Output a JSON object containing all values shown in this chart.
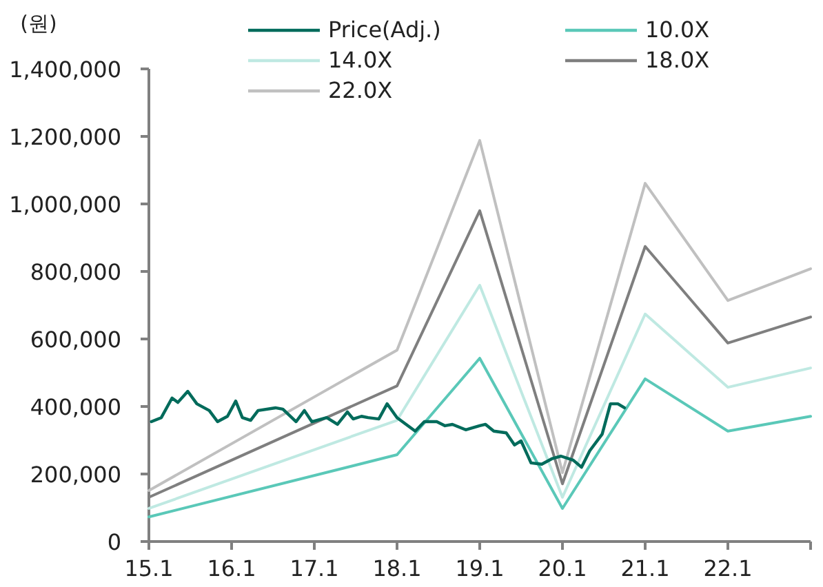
{
  "chart_data": {
    "type": "line",
    "ylabel": "(원)",
    "xlim": [
      15.1,
      23.1
    ],
    "xticks": [
      15.1,
      16.1,
      17.1,
      18.1,
      19.1,
      20.1,
      21.1,
      22.1,
      {
        "value": 23.1,
        "label": null
      }
    ],
    "ylim": [
      0,
      1400000
    ],
    "yticks": [
      {
        "value": 0,
        "label": "0"
      },
      {
        "value": 200000,
        "label": "200,000"
      },
      {
        "value": 400000,
        "label": "400,000"
      },
      {
        "value": 600000,
        "label": "600,000"
      },
      {
        "value": 800000,
        "label": "800,000"
      },
      {
        "value": 1000000,
        "label": "1,000,000"
      },
      {
        "value": 1200000,
        "label": "1,200,000"
      },
      {
        "value": 1400000,
        "label": "1,400,000"
      }
    ],
    "grid": false,
    "legend": "top",
    "marker": "none",
    "line_style": "solid",
    "series": [
      {
        "name": "Price(Adj.)",
        "color": "#006b5b",
        "x": [
          15.13,
          15.25,
          15.38,
          15.45,
          15.57,
          15.68,
          15.83,
          15.93,
          16.05,
          16.15,
          16.23,
          16.33,
          16.42,
          16.63,
          16.72,
          16.88,
          16.98,
          17.07,
          17.25,
          17.38,
          17.5,
          17.57,
          17.67,
          17.75,
          17.88,
          17.98,
          18.1,
          18.32,
          18.43,
          18.58,
          18.68,
          18.77,
          18.93,
          19.1,
          19.17,
          19.27,
          19.42,
          19.52,
          19.6,
          19.72,
          19.85,
          19.97,
          20.08,
          20.23,
          20.33,
          20.43,
          20.58,
          20.68,
          20.77,
          20.85
        ],
        "values": [
          355000,
          367000,
          425000,
          412000,
          445000,
          408000,
          388000,
          355000,
          371000,
          416000,
          367000,
          359000,
          388000,
          396000,
          392000,
          355000,
          388000,
          355000,
          367000,
          347000,
          384000,
          363000,
          371000,
          367000,
          363000,
          408000,
          367000,
          327000,
          355000,
          355000,
          343000,
          347000,
          331000,
          343000,
          347000,
          327000,
          322000,
          286000,
          298000,
          233000,
          229000,
          245000,
          253000,
          241000,
          220000,
          269000,
          318000,
          408000,
          408000,
          396000
        ]
      },
      {
        "name": "10.0X",
        "color": "#5ac8b8",
        "x": [
          15.1,
          18.1,
          19.1,
          20.1,
          21.1,
          22.1,
          23.1
        ],
        "values": [
          73000,
          257000,
          543000,
          98000,
          482000,
          327000,
          371000
        ]
      },
      {
        "name": "14.0X",
        "color": "#bfe9e2",
        "x": [
          15.1,
          18.1,
          19.1,
          20.1,
          21.1,
          22.1,
          23.1
        ],
        "values": [
          98000,
          359000,
          759000,
          131000,
          674000,
          457000,
          514000
        ]
      },
      {
        "name": "18.0X",
        "color": "#7f7f7f",
        "x": [
          15.1,
          18.1,
          19.1,
          20.1,
          21.1,
          22.1,
          23.1
        ],
        "values": [
          131000,
          461000,
          980000,
          171000,
          874000,
          588000,
          665000
        ]
      },
      {
        "name": "22.0X",
        "color": "#c0c0c0",
        "x": [
          15.1,
          18.1,
          19.1,
          20.1,
          21.1,
          22.1,
          23.1
        ],
        "values": [
          151000,
          567000,
          1188000,
          204000,
          1061000,
          714000,
          808000
        ]
      }
    ]
  }
}
